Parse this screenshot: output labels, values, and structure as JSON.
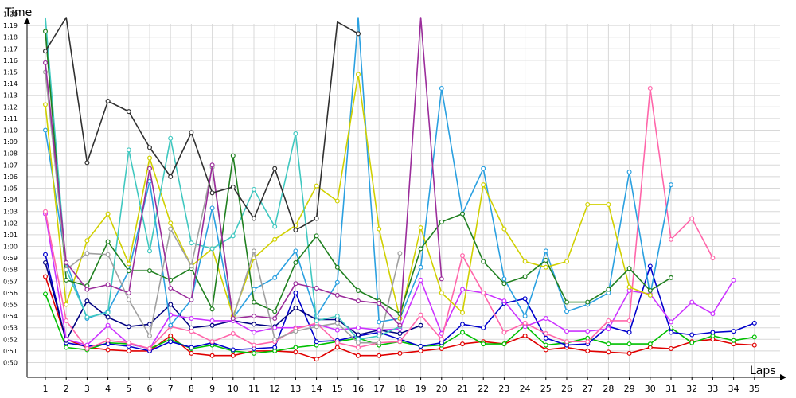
{
  "chart_data": {
    "type": "line",
    "ylabel": "Time",
    "xlabel": "Laps",
    "grid": true,
    "xlim": [
      0,
      35
    ],
    "x_ticks": [
      1,
      2,
      3,
      4,
      5,
      6,
      7,
      8,
      9,
      10,
      11,
      12,
      13,
      14,
      15,
      16,
      17,
      18,
      19,
      20,
      21,
      22,
      23,
      24,
      25,
      26,
      27,
      28,
      29,
      30,
      31,
      32,
      33,
      34,
      35
    ],
    "ylim": [
      48,
      82
    ],
    "y_ticks": [
      50,
      51,
      52,
      53,
      54,
      55,
      56,
      57,
      58,
      59,
      60,
      61,
      62,
      63,
      64,
      65,
      66,
      67,
      68,
      69,
      70,
      71,
      72,
      73,
      74,
      75,
      76,
      77,
      78,
      79,
      80
    ],
    "y_tick_labels": [
      "0:50",
      "0:51",
      "0:52",
      "0:53",
      "0:54",
      "0:55",
      "0:56",
      "0:57",
      "0:58",
      "0:59",
      "1:00",
      "1:01",
      "1:02",
      "1:03",
      "1:04",
      "1:05",
      "1:06",
      "1:07",
      "1:08",
      "1:09",
      "1:10",
      "1:11",
      "1:12",
      "1:13",
      "1:14",
      "1:15",
      "1:16",
      "1:17",
      "1:18",
      "1:19",
      "1:20"
    ],
    "series": [
      {
        "color": "#e00000",
        "values": [
          57.4,
          52.0,
          51.3,
          51.1,
          51.0,
          51.0,
          52.3,
          50.8,
          50.6,
          50.6,
          51.0,
          51.0,
          50.9,
          50.3,
          51.3,
          50.6,
          50.6,
          50.8,
          51.0,
          51.2,
          51.6,
          51.8,
          51.6,
          52.3,
          51.1,
          51.3,
          51.0,
          50.9,
          50.8,
          51.3,
          51.2,
          51.8,
          52.0,
          51.6,
          51.5
        ]
      },
      {
        "color": "#00c000",
        "values": [
          55.9,
          51.3,
          51.1,
          51.7,
          51.6,
          51.2,
          52.0,
          51.2,
          51.5,
          51.0,
          50.8,
          51.0,
          51.3,
          51.5,
          51.8,
          52.1,
          51.5,
          51.8,
          51.4,
          51.5,
          52.6,
          51.6,
          51.6,
          53.2,
          51.5,
          51.7,
          52.1,
          51.6,
          51.6,
          51.6,
          53.0,
          51.7,
          52.3,
          51.9,
          52.2
        ]
      },
      {
        "color": "#0000cc",
        "values": [
          59.3,
          51.7,
          51.4,
          51.6,
          51.4,
          51.0,
          51.8,
          51.3,
          51.7,
          51.1,
          51.2,
          51.3,
          56.0,
          51.8,
          51.9,
          52.3,
          52.6,
          52.0,
          51.4,
          51.7,
          53.3,
          53.0,
          55.1,
          55.5,
          52.1,
          51.5,
          51.6,
          53.1,
          52.6,
          58.3,
          52.6,
          52.4,
          52.6,
          52.7,
          53.4
        ]
      },
      {
        "color": "#000080",
        "values": [
          58.6,
          51.9,
          55.3,
          53.9,
          53.1,
          53.3,
          55.0,
          53.0,
          53.2,
          53.6,
          53.3,
          53.1,
          54.7,
          53.7,
          53.7,
          52.4,
          52.8,
          52.5,
          53.2
        ]
      },
      {
        "color": "#cc33ff",
        "values": [
          62.8,
          52.0,
          51.5,
          53.2,
          51.6,
          51.2,
          54.1,
          53.8,
          53.6,
          53.6,
          52.6,
          53.0,
          53.0,
          53.3,
          52.8,
          53.0,
          52.8,
          52.9,
          57.1,
          52.5,
          56.3,
          56.0,
          55.3,
          53.1,
          53.8,
          52.7,
          52.7,
          52.9,
          56.2,
          55.9,
          53.5,
          55.2,
          54.2,
          57.1
        ]
      },
      {
        "color": "#ff66aa",
        "values": [
          63.0,
          53.6,
          51.2,
          51.9,
          51.7,
          51.2,
          53.1,
          52.7,
          51.8,
          52.5,
          51.5,
          51.8,
          52.9,
          53.4,
          51.7,
          51.3,
          51.7,
          51.8,
          54.1,
          52.0,
          59.2,
          56.0,
          52.6,
          53.4,
          52.5,
          51.8,
          51.8,
          53.6,
          53.6,
          73.6,
          60.6,
          62.4,
          59.0
        ]
      },
      {
        "color": "#2aa0e0",
        "values": [
          70.0,
          58.6,
          53.8,
          54.4,
          57.9,
          65.6,
          53.2,
          55.4,
          63.3,
          53.8,
          56.3,
          57.3,
          59.6,
          54.0,
          56.9,
          90,
          53.5,
          53.8,
          58.2,
          73.6,
          62.8,
          66.7,
          57.2,
          54.0,
          59.6,
          54.4,
          55.0,
          56.0,
          66.4,
          55.8,
          65.3
        ]
      },
      {
        "color": "#d0d000",
        "values": [
          72.2,
          55.0,
          60.5,
          62.8,
          58.5,
          67.6,
          62.0,
          58.3,
          59.8,
          54.0,
          59.0,
          60.6,
          61.8,
          65.2,
          63.9,
          74.8,
          61.5,
          53.8,
          61.6,
          56.0,
          54.3,
          65.3,
          61.5,
          58.7,
          58.2,
          58.7,
          63.6,
          63.6,
          56.5,
          55.8
        ]
      },
      {
        "color": "#40c8c0",
        "values": [
          81.6,
          58.0,
          53.9,
          54.3,
          68.3,
          59.6,
          69.3,
          60.3,
          59.8,
          60.9,
          64.9,
          61.7,
          69.7,
          53.6,
          54.0,
          52.0,
          52.3,
          53.1
        ]
      },
      {
        "color": "#208020",
        "values": [
          78.5,
          57.1,
          56.6,
          60.4,
          57.9,
          57.9,
          57.1,
          58.1,
          54.6,
          67.8,
          55.2,
          54.4,
          58.6,
          60.9,
          58.2,
          56.2,
          55.3,
          54.2,
          59.8,
          62.1,
          62.8,
          58.7,
          56.8,
          57.4,
          58.8,
          55.2,
          55.2,
          56.3,
          58.1,
          56.2,
          57.3
        ]
      },
      {
        "color": "#a0a0a0",
        "values": [
          75.0,
          58.0,
          59.4,
          59.3,
          55.4,
          52.3,
          61.5,
          58.3,
          66.8,
          53.8,
          59.6,
          52.0,
          52.7,
          53.1,
          53.4,
          51.7,
          51.7,
          59.4
        ]
      },
      {
        "color": "#9b2d9b",
        "values": [
          75.8,
          58.6,
          56.3,
          56.7,
          56.0,
          66.7,
          56.4,
          55.4,
          67.0,
          53.8,
          54.0,
          53.8,
          56.8,
          56.4,
          55.8,
          55.3,
          55.1,
          53.2,
          82,
          57.2
        ]
      },
      {
        "color": "#303030",
        "values": [
          76.8,
          82,
          67.2,
          72.5,
          71.6,
          68.5,
          66.0,
          69.8,
          64.6,
          65.1,
          62.4,
          66.7,
          61.4,
          62.4,
          79.3,
          78.3
        ]
      }
    ]
  }
}
